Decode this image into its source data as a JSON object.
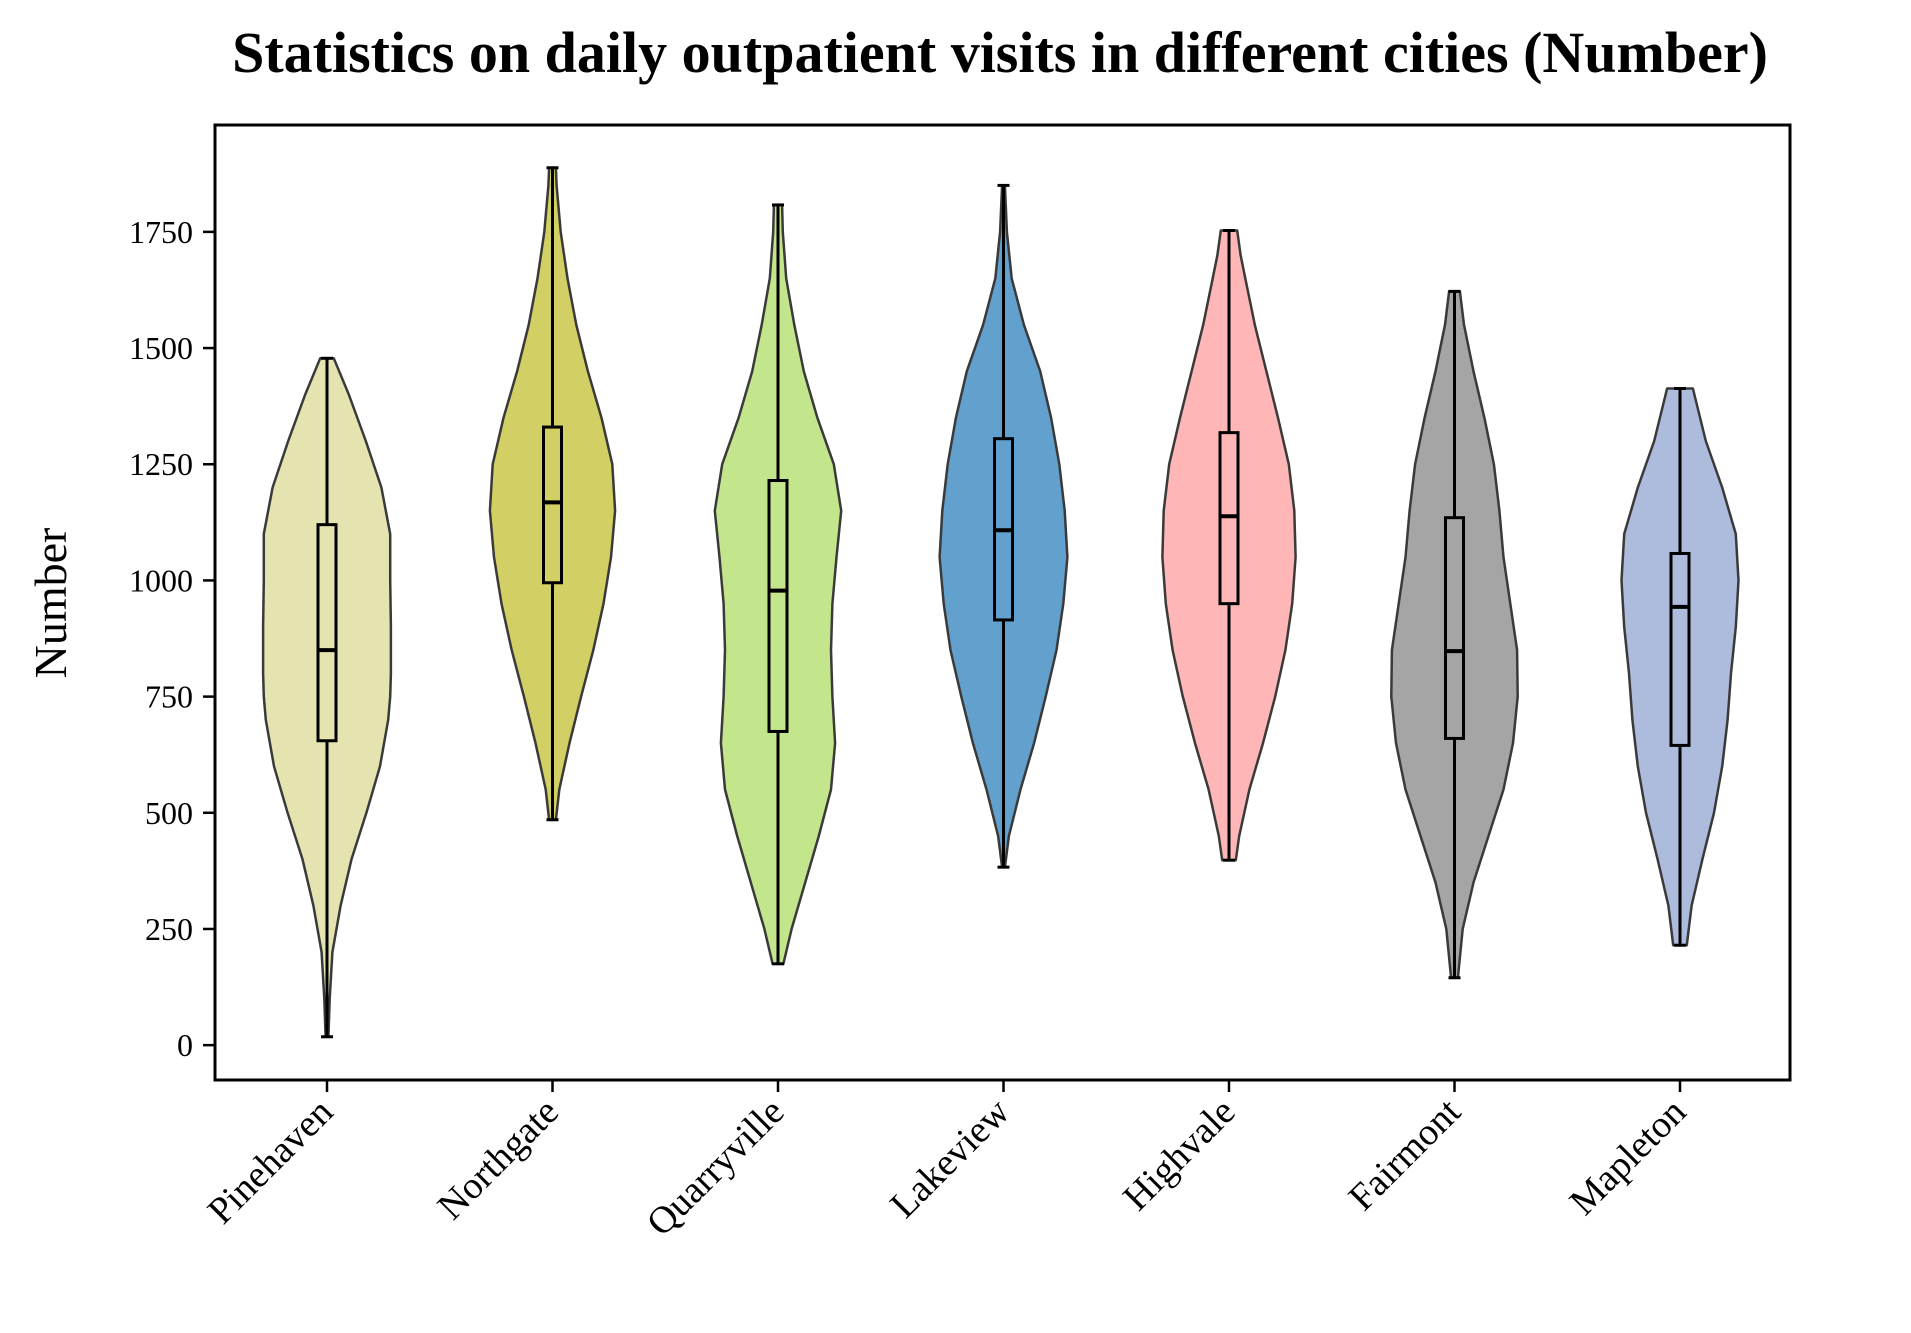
{
  "chart_data": {
    "type": "violin",
    "title": "Statistics on daily outpatient visits in different cities (Number)",
    "xlabel": "",
    "ylabel": "Number",
    "ylim": [
      -75,
      1980
    ],
    "yticks": [
      0,
      250,
      500,
      750,
      1000,
      1250,
      1500,
      1750
    ],
    "grid": false,
    "legend": "none",
    "categories": [
      "Pinehaven",
      "Northgate",
      "Quarryville",
      "Lakeview",
      "Highvale",
      "Fairmont",
      "Mapleton"
    ],
    "series": [
      {
        "category": "Pinehaven",
        "color": "#e5e4b0",
        "min": 18,
        "q1": 655,
        "median": 850,
        "q3": 1120,
        "max": 1478,
        "density": [
          [
            18,
            0.02
          ],
          [
            100,
            0.04
          ],
          [
            200,
            0.08
          ],
          [
            300,
            0.2
          ],
          [
            400,
            0.36
          ],
          [
            500,
            0.58
          ],
          [
            600,
            0.78
          ],
          [
            700,
            0.9
          ],
          [
            750,
            0.93
          ],
          [
            800,
            0.94
          ],
          [
            900,
            0.94
          ],
          [
            1000,
            0.93
          ],
          [
            1100,
            0.93
          ],
          [
            1200,
            0.8
          ],
          [
            1300,
            0.57
          ],
          [
            1400,
            0.32
          ],
          [
            1478,
            0.1
          ]
        ]
      },
      {
        "category": "Northgate",
        "color": "#d2d064",
        "min": 485,
        "q1": 995,
        "median": 1168,
        "q3": 1330,
        "max": 1888,
        "density": [
          [
            485,
            0.05
          ],
          [
            550,
            0.1
          ],
          [
            650,
            0.25
          ],
          [
            750,
            0.42
          ],
          [
            850,
            0.6
          ],
          [
            950,
            0.75
          ],
          [
            1050,
            0.86
          ],
          [
            1150,
            0.92
          ],
          [
            1250,
            0.88
          ],
          [
            1350,
            0.72
          ],
          [
            1450,
            0.52
          ],
          [
            1550,
            0.35
          ],
          [
            1650,
            0.22
          ],
          [
            1750,
            0.12
          ],
          [
            1850,
            0.06
          ],
          [
            1888,
            0.05
          ]
        ]
      },
      {
        "category": "Quarryville",
        "color": "#c3e58b",
        "min": 175,
        "q1": 675,
        "median": 978,
        "q3": 1215,
        "max": 1808,
        "density": [
          [
            175,
            0.08
          ],
          [
            250,
            0.2
          ],
          [
            350,
            0.4
          ],
          [
            450,
            0.6
          ],
          [
            550,
            0.78
          ],
          [
            650,
            0.84
          ],
          [
            750,
            0.8
          ],
          [
            850,
            0.78
          ],
          [
            950,
            0.8
          ],
          [
            1050,
            0.86
          ],
          [
            1150,
            0.93
          ],
          [
            1250,
            0.82
          ],
          [
            1350,
            0.58
          ],
          [
            1450,
            0.38
          ],
          [
            1550,
            0.24
          ],
          [
            1650,
            0.12
          ],
          [
            1750,
            0.07
          ],
          [
            1808,
            0.06
          ]
        ]
      },
      {
        "category": "Lakeview",
        "color": "#62a0cd",
        "min": 383,
        "q1": 915,
        "median": 1108,
        "q3": 1305,
        "max": 1850,
        "density": [
          [
            383,
            0.02
          ],
          [
            450,
            0.08
          ],
          [
            550,
            0.25
          ],
          [
            650,
            0.45
          ],
          [
            750,
            0.62
          ],
          [
            850,
            0.78
          ],
          [
            950,
            0.88
          ],
          [
            1050,
            0.94
          ],
          [
            1150,
            0.9
          ],
          [
            1250,
            0.82
          ],
          [
            1350,
            0.7
          ],
          [
            1450,
            0.54
          ],
          [
            1550,
            0.3
          ],
          [
            1650,
            0.12
          ],
          [
            1750,
            0.05
          ],
          [
            1850,
            0.02
          ]
        ]
      },
      {
        "category": "Highvale",
        "color": "#ffb6b6",
        "min": 398,
        "q1": 950,
        "median": 1138,
        "q3": 1318,
        "max": 1753,
        "density": [
          [
            398,
            0.1
          ],
          [
            450,
            0.15
          ],
          [
            550,
            0.3
          ],
          [
            650,
            0.5
          ],
          [
            750,
            0.68
          ],
          [
            850,
            0.83
          ],
          [
            950,
            0.93
          ],
          [
            1050,
            0.98
          ],
          [
            1150,
            0.96
          ],
          [
            1250,
            0.88
          ],
          [
            1350,
            0.72
          ],
          [
            1450,
            0.55
          ],
          [
            1550,
            0.38
          ],
          [
            1650,
            0.24
          ],
          [
            1700,
            0.17
          ],
          [
            1753,
            0.12
          ]
        ]
      },
      {
        "category": "Fairmont",
        "color": "#a5a5a5",
        "min": 145,
        "q1": 660,
        "median": 848,
        "q3": 1135,
        "max": 1622,
        "density": [
          [
            145,
            0.05
          ],
          [
            250,
            0.12
          ],
          [
            350,
            0.28
          ],
          [
            450,
            0.5
          ],
          [
            550,
            0.72
          ],
          [
            650,
            0.86
          ],
          [
            750,
            0.93
          ],
          [
            850,
            0.92
          ],
          [
            950,
            0.82
          ],
          [
            1050,
            0.72
          ],
          [
            1150,
            0.66
          ],
          [
            1250,
            0.58
          ],
          [
            1350,
            0.44
          ],
          [
            1450,
            0.28
          ],
          [
            1550,
            0.14
          ],
          [
            1622,
            0.08
          ]
        ]
      },
      {
        "category": "Mapleton",
        "color": "#adbcdd",
        "min": 215,
        "q1": 645,
        "median": 943,
        "q3": 1058,
        "max": 1413,
        "density": [
          [
            215,
            0.1
          ],
          [
            300,
            0.17
          ],
          [
            400,
            0.33
          ],
          [
            500,
            0.5
          ],
          [
            600,
            0.62
          ],
          [
            700,
            0.7
          ],
          [
            800,
            0.75
          ],
          [
            900,
            0.82
          ],
          [
            1000,
            0.86
          ],
          [
            1100,
            0.82
          ],
          [
            1200,
            0.62
          ],
          [
            1300,
            0.38
          ],
          [
            1413,
            0.19
          ]
        ]
      }
    ]
  }
}
